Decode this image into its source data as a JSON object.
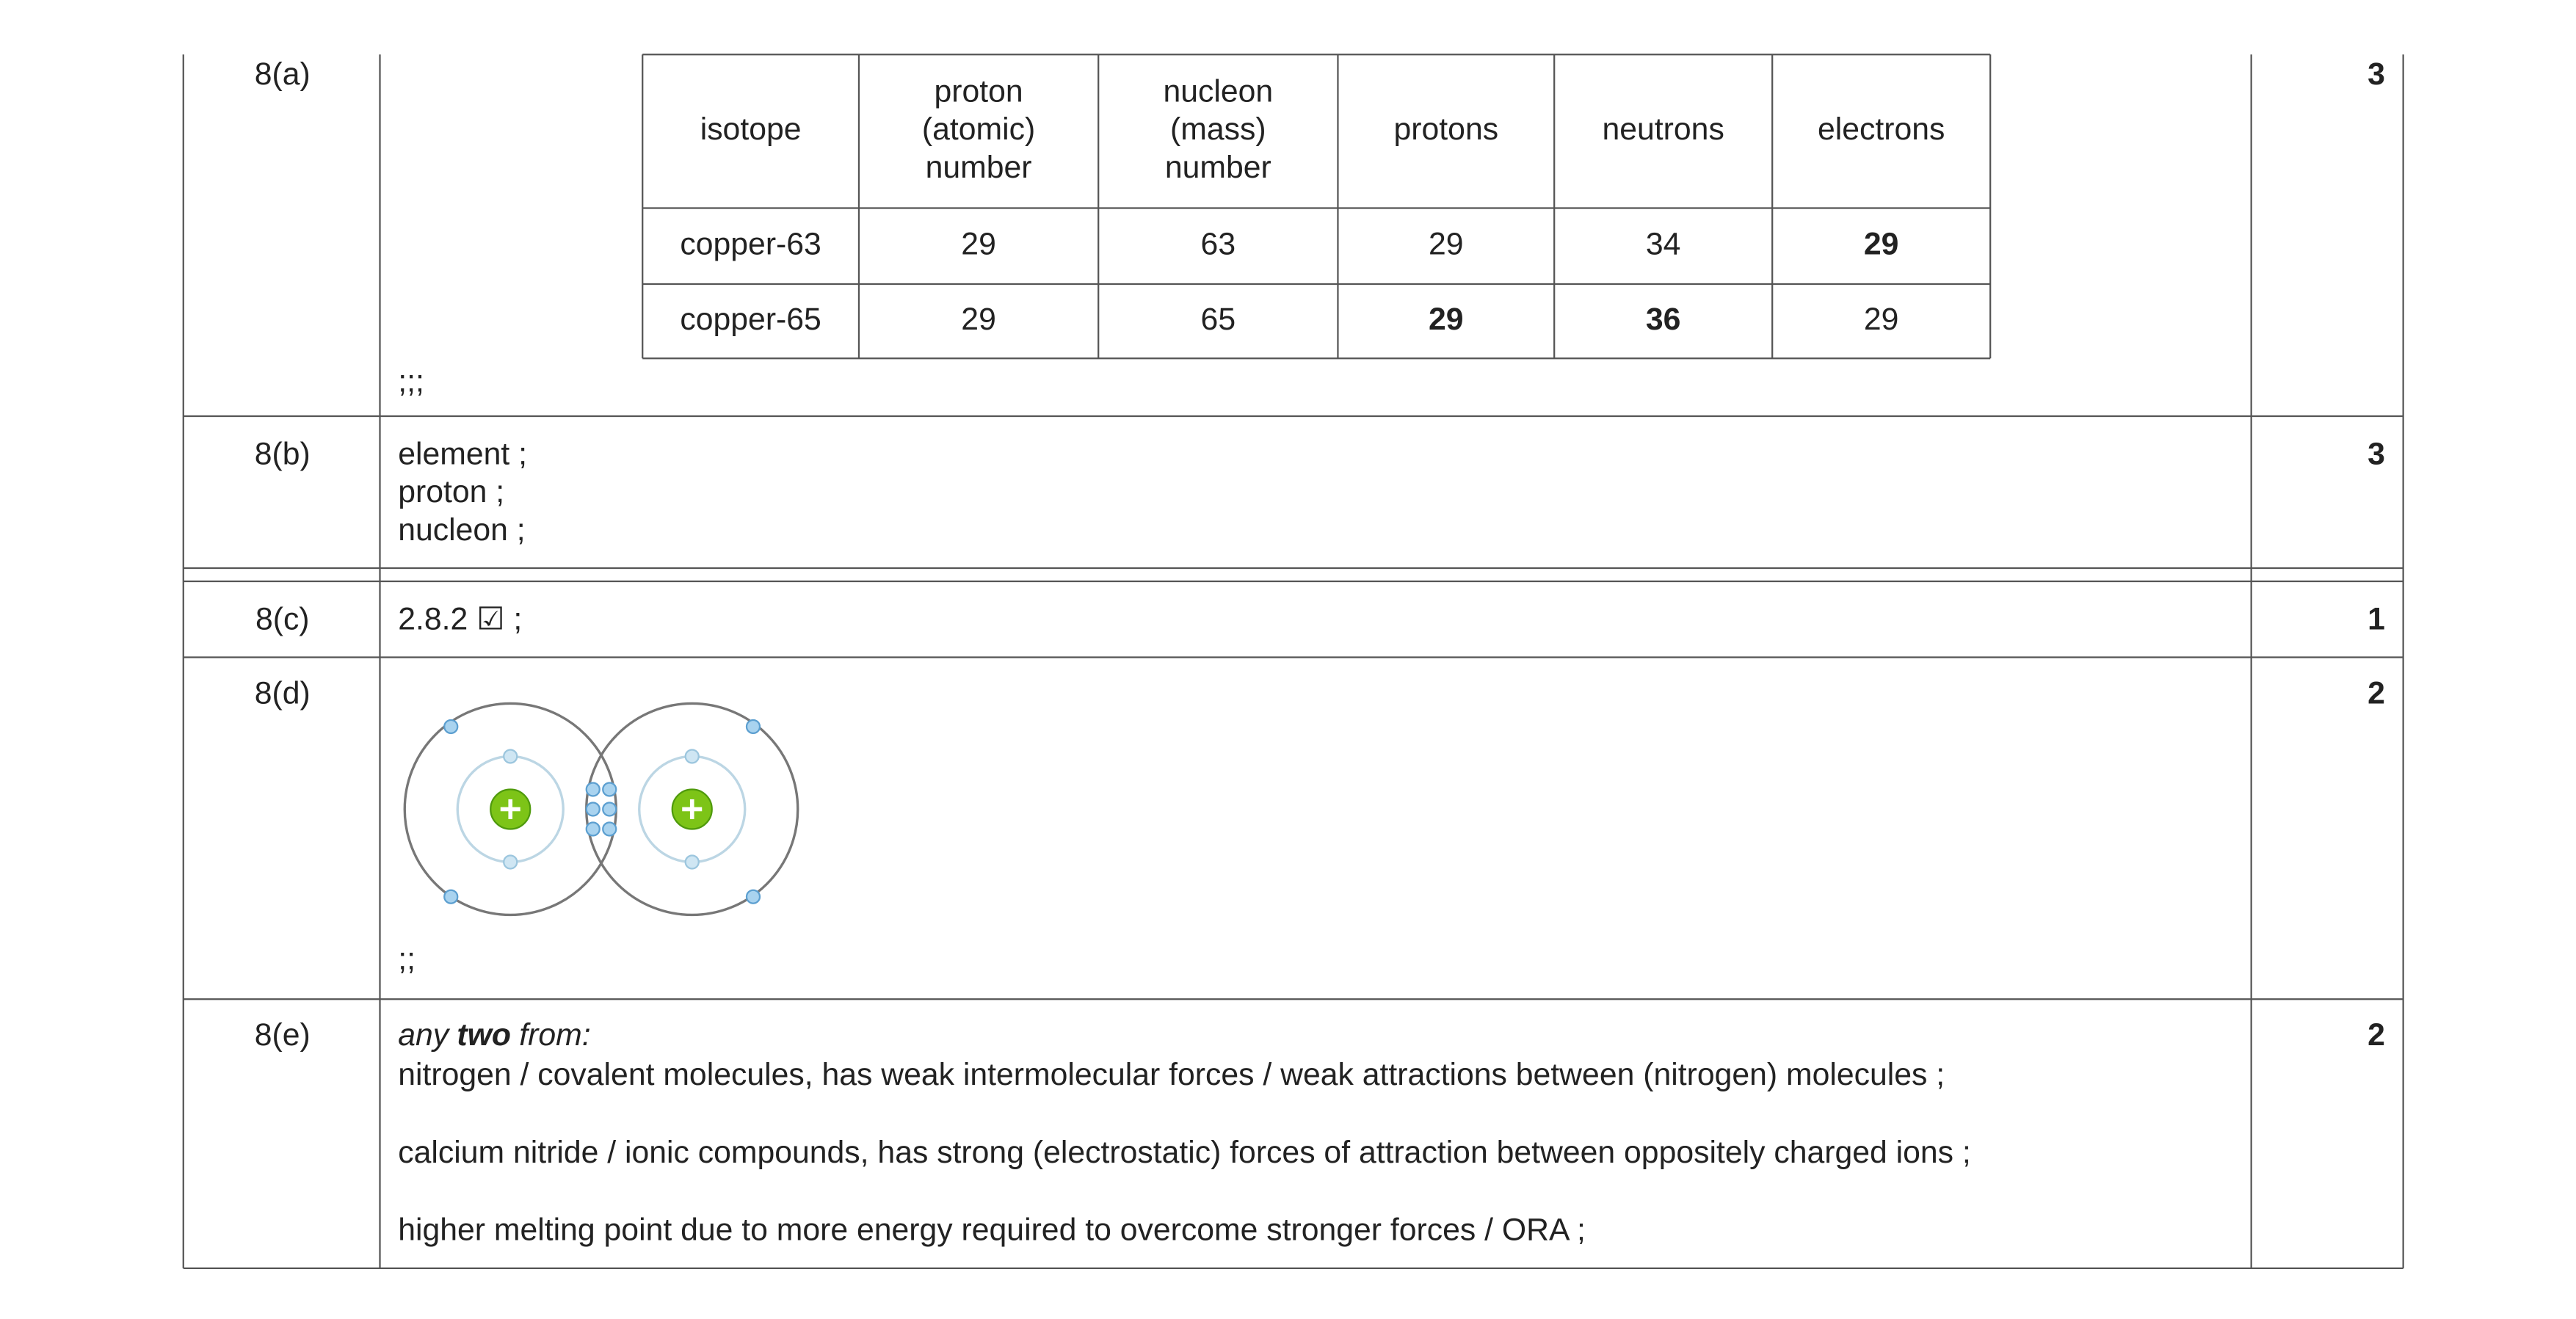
{
  "rows": [
    {
      "question": "8(a)",
      "answer": ";;;",
      "marks": "3"
    },
    {
      "question": "8(b)",
      "answer": [
        "element ;",
        "proton ;",
        "nucleon ;"
      ],
      "marks": "3"
    },
    {
      "question": "8(c)",
      "answer": "2.8.2 ☑ ;",
      "marks": "1"
    },
    {
      "question": "8(d)",
      "answer": ";;",
      "marks": "2"
    },
    {
      "question": "8(e)",
      "answer": {
        "intro": [
          "any",
          "two",
          "from:"
        ],
        "points": [
          "nitrogen / covalent molecules, has weak intermolecular forces / weak attractions between (nitrogen) molecules ;",
          "calcium nitride / ionic compounds, has strong (electrostatic) forces of attraction between oppositely charged ions ;",
          "higher melting point due to more energy required to overcome stronger forces / ORA ;"
        ]
      },
      "marks": "2"
    }
  ],
  "isotope_table": {
    "headers": [
      [
        "isotope"
      ],
      [
        "proton",
        "(atomic)",
        "number"
      ],
      [
        "nucleon",
        "(mass)",
        "number"
      ],
      [
        "protons"
      ],
      [
        "neutrons"
      ],
      [
        "electrons"
      ]
    ],
    "rows": [
      [
        {
          "text": "copper-63",
          "bold": false
        },
        {
          "text": "29",
          "bold": false
        },
        {
          "text": "63",
          "bold": false
        },
        {
          "text": "29",
          "bold": false
        },
        {
          "text": "34",
          "bold": false
        },
        {
          "text": "29",
          "bold": true
        }
      ],
      [
        {
          "text": "copper-65",
          "bold": false
        },
        {
          "text": "29",
          "bold": false
        },
        {
          "text": "65",
          "bold": false
        },
        {
          "text": "29",
          "bold": true
        },
        {
          "text": "36",
          "bold": true
        },
        {
          "text": "29",
          "bold": false
        }
      ]
    ]
  }
}
